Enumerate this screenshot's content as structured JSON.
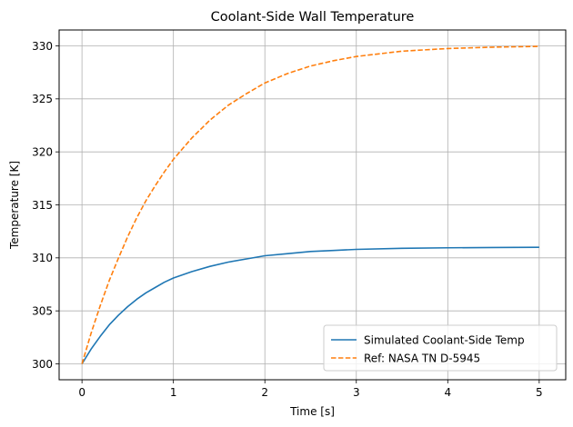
{
  "chart_data": {
    "type": "line",
    "title": "Coolant-Side Wall Temperature",
    "xlabel": "Time [s]",
    "ylabel": "Temperature [K]",
    "xlim": [
      -0.25,
      5.29
    ],
    "ylim": [
      298.5,
      331.5
    ],
    "xticks": [
      0,
      1,
      2,
      3,
      4,
      5
    ],
    "yticks": [
      300,
      305,
      310,
      315,
      320,
      325,
      330
    ],
    "grid": true,
    "legend_position": "lower-right",
    "series": [
      {
        "name": "Simulated Coolant-Side Temp",
        "color": "#1f77b4",
        "style": "solid",
        "x": [
          0,
          0.1,
          0.2,
          0.3,
          0.4,
          0.5,
          0.6,
          0.7,
          0.8,
          0.9,
          1.0,
          1.2,
          1.4,
          1.6,
          1.8,
          2.0,
          2.25,
          2.5,
          2.75,
          3.0,
          3.5,
          4.0,
          4.5,
          5.0
        ],
        "y": [
          300.0,
          301.4,
          302.6,
          303.7,
          304.6,
          305.4,
          306.1,
          306.7,
          307.2,
          307.7,
          308.1,
          308.7,
          309.2,
          309.6,
          309.9,
          310.2,
          310.4,
          310.6,
          310.7,
          310.8,
          310.9,
          310.95,
          310.98,
          311.0
        ]
      },
      {
        "name": "Ref: NASA TN D-5945",
        "color": "#ff7f0e",
        "style": "dashed",
        "x": [
          0,
          0.1,
          0.2,
          0.3,
          0.4,
          0.5,
          0.6,
          0.7,
          0.8,
          0.9,
          1.0,
          1.2,
          1.4,
          1.6,
          1.8,
          2.0,
          2.25,
          2.5,
          2.75,
          3.0,
          3.5,
          4.0,
          4.5,
          5.0
        ],
        "y": [
          300.0,
          302.9,
          305.5,
          307.9,
          310.0,
          312.0,
          313.8,
          315.4,
          316.8,
          318.1,
          319.3,
          321.3,
          323.0,
          324.4,
          325.5,
          326.5,
          327.4,
          328.1,
          328.6,
          329.0,
          329.5,
          329.75,
          329.88,
          329.95
        ]
      }
    ]
  }
}
